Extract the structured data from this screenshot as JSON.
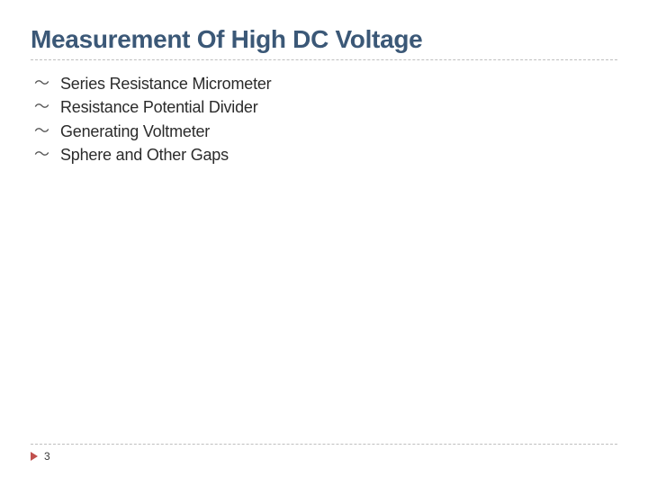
{
  "title": {
    "text": "Measurement Of High DC Voltage",
    "color": "#3b5877",
    "fontsize": 28,
    "font_weight": "bold"
  },
  "divider": {
    "style": "dashed",
    "color": "#bfbfbf",
    "width": 1.5
  },
  "bullets": {
    "marker_char": "～",
    "marker_color": "#555555",
    "text_color": "#2b2b2b",
    "text_fontsize": 18,
    "items": [
      "Series Resistance Micrometer",
      "Resistance Potential Divider",
      "Generating Voltmeter",
      "Sphere and Other Gaps"
    ]
  },
  "footer": {
    "arrow_color": "#c0504d",
    "page_number": "3",
    "page_fontsize": 12,
    "page_color": "#3a3a3a"
  },
  "background_color": "#ffffff"
}
